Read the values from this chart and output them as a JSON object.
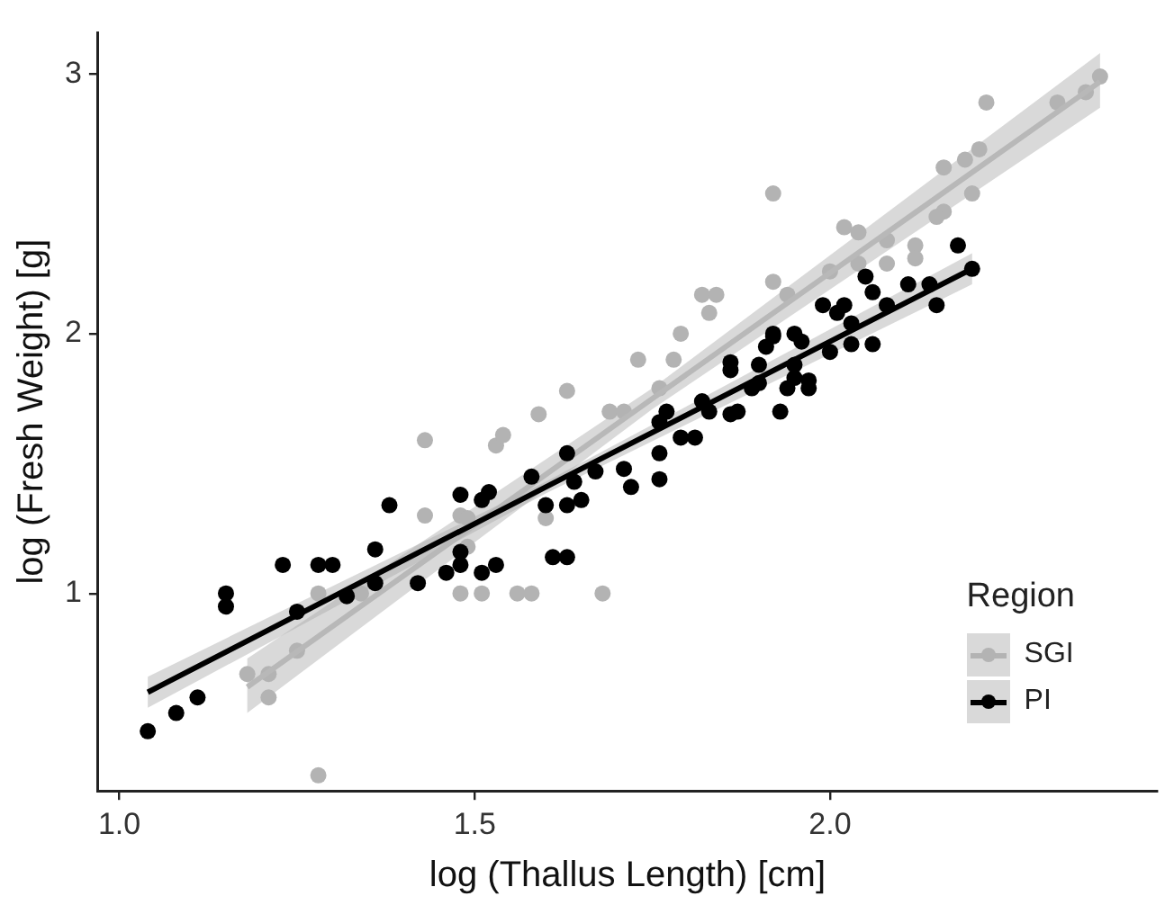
{
  "chart_data": {
    "type": "scatter",
    "xlabel": "log (Thallus Length) [cm]",
    "ylabel": "log (Fresh Weight) [g]",
    "legend_title": "Region",
    "legend": "bottom right",
    "grid": false,
    "marker": "circle",
    "xlim": [
      0.97,
      2.46
    ],
    "ylim": [
      0.24,
      3.16
    ],
    "xticks": [
      {
        "value": 1,
        "label": "1.0"
      },
      1.5,
      {
        "value": 2,
        "label": "2.0"
      }
    ],
    "yticks": [
      1,
      2,
      3
    ],
    "series": [
      {
        "name": "SGI",
        "color": "#b3b3b3",
        "x": [
          1.28,
          1.18,
          1.21,
          1.21,
          1.25,
          1.28,
          1.34,
          1.43,
          1.43,
          1.48,
          1.48,
          1.51,
          1.49,
          1.53,
          1.54,
          1.63,
          1.59,
          1.56,
          1.58,
          1.68,
          1.6,
          1.69,
          1.71,
          1.73,
          1.78,
          1.79,
          1.82,
          1.84,
          1.83,
          1.92,
          1.94,
          1.76,
          1.49,
          2.38,
          2.36,
          2.32,
          2.22,
          2.21,
          2.19,
          2.16,
          2.2,
          2.16,
          2.15,
          1.92,
          2.02,
          2.04,
          2.08,
          2.12,
          2.12,
          2.08,
          2.04,
          2.0
        ],
        "values": [
          0.3,
          0.69,
          0.69,
          0.6,
          0.78,
          1.0,
          1.0,
          1.3,
          1.59,
          1.3,
          1.0,
          1.0,
          1.18,
          1.57,
          1.61,
          1.78,
          1.69,
          1.0,
          1.0,
          1.0,
          1.29,
          1.7,
          1.7,
          1.9,
          1.9,
          2.0,
          2.15,
          2.15,
          2.08,
          2.2,
          2.15,
          1.79,
          1.29,
          2.99,
          2.93,
          2.89,
          2.89,
          2.71,
          2.67,
          2.64,
          2.54,
          2.47,
          2.45,
          2.54,
          2.41,
          2.39,
          2.36,
          2.34,
          2.29,
          2.27,
          2.27,
          2.24
        ]
      },
      {
        "type": "line",
        "marker": "none",
        "color": "#b8b8b8",
        "x": [
          1.18,
          1.75,
          2.38
        ],
        "values": [
          0.64,
          1.75,
          2.97
        ],
        "lower": [
          0.54,
          1.71,
          2.87
        ],
        "upper": [
          0.75,
          1.79,
          3.08
        ]
      },
      {
        "name": "PI",
        "color": "#000000",
        "x": [
          1.04,
          1.08,
          1.11,
          1.15,
          1.15,
          1.23,
          1.28,
          1.3,
          1.25,
          1.32,
          1.36,
          1.38,
          1.36,
          1.42,
          1.48,
          1.51,
          1.46,
          1.48,
          1.51,
          1.48,
          1.52,
          1.6,
          1.63,
          1.65,
          1.61,
          1.63,
          1.53,
          1.58,
          1.63,
          1.64,
          1.67,
          1.71,
          1.72,
          1.76,
          1.76,
          1.79,
          1.81,
          1.76,
          1.77,
          1.82,
          1.83,
          1.86,
          1.87,
          1.86,
          1.9,
          1.92,
          1.93,
          1.95,
          1.96,
          1.97,
          1.89,
          1.9,
          2.18,
          2.2,
          2.15,
          2.14,
          2.11,
          2.08,
          2.05,
          2.06,
          2.02,
          2.01,
          1.99,
          2.03,
          2.06,
          2.03,
          2.0,
          1.95,
          1.92,
          1.95,
          1.97,
          1.94,
          1.86,
          1.91
        ],
        "values": [
          0.47,
          0.54,
          0.6,
          1.0,
          0.95,
          1.11,
          1.11,
          1.11,
          0.93,
          0.99,
          1.17,
          1.34,
          1.04,
          1.04,
          1.38,
          1.36,
          1.08,
          1.11,
          1.08,
          1.16,
          1.39,
          1.34,
          1.34,
          1.36,
          1.14,
          1.14,
          1.11,
          1.45,
          1.54,
          1.43,
          1.47,
          1.48,
          1.41,
          1.44,
          1.54,
          1.6,
          1.6,
          1.66,
          1.7,
          1.74,
          1.7,
          1.69,
          1.7,
          1.89,
          1.88,
          1.99,
          1.7,
          1.83,
          1.97,
          1.79,
          1.79,
          1.81,
          2.34,
          2.25,
          2.11,
          2.19,
          2.19,
          2.11,
          2.22,
          2.16,
          2.11,
          2.08,
          2.11,
          2.04,
          1.96,
          1.96,
          1.93,
          2.0,
          2.0,
          1.88,
          1.82,
          1.79,
          1.86,
          1.95
        ]
      },
      {
        "type": "line",
        "marker": "none",
        "color": "#000000",
        "x": [
          1.04,
          1.6,
          2.2
        ],
        "values": [
          0.62,
          1.41,
          2.25
        ],
        "lower": [
          0.56,
          1.385,
          2.19
        ],
        "upper": [
          0.68,
          1.43,
          2.31
        ]
      }
    ]
  }
}
